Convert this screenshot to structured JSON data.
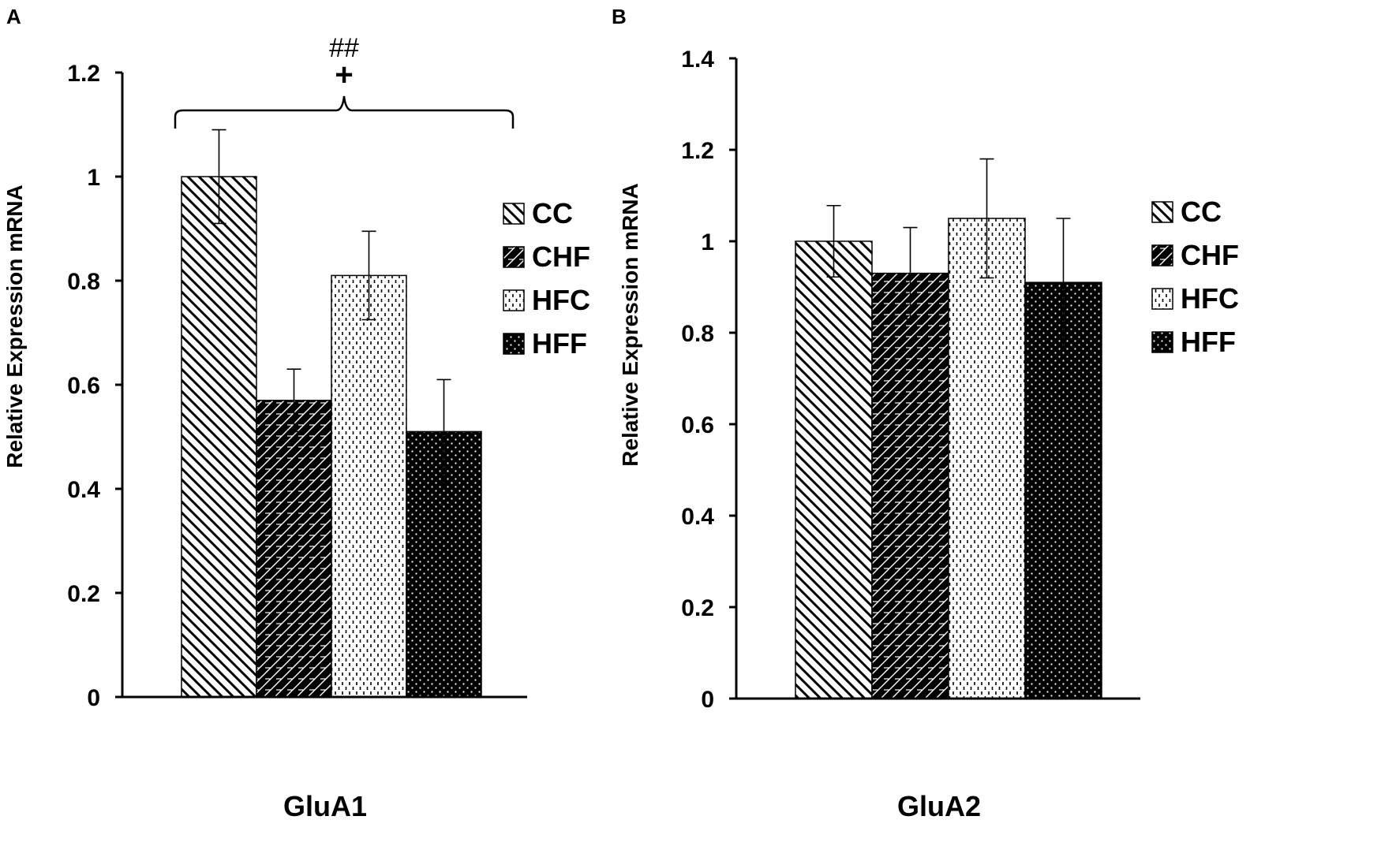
{
  "chart_data": [
    {
      "panel": "A",
      "type": "bar",
      "category": "GluA1",
      "ylabel": "Relative Expression mRNA",
      "ylim": [
        0,
        1.2
      ],
      "yticks": [
        0,
        0.2,
        0.4,
        0.6,
        0.8,
        1,
        1.2
      ],
      "ytick_labels": [
        "0",
        "0.2",
        "0.4",
        "0.6",
        "0.8",
        "1",
        "1.2"
      ],
      "series": [
        {
          "name": "CC",
          "value": 1.0,
          "error": 0.09,
          "pattern": "diag"
        },
        {
          "name": "CHF",
          "value": 0.57,
          "error": 0.06,
          "pattern": "brick"
        },
        {
          "name": "HFC",
          "value": 0.81,
          "error": 0.085,
          "pattern": "dash"
        },
        {
          "name": "HFF",
          "value": 0.51,
          "error": 0.1,
          "pattern": "dots"
        }
      ],
      "annotation": {
        "line1": "##",
        "line2": "+"
      },
      "legend": [
        "CC",
        "CHF",
        "HFC",
        "HFF"
      ]
    },
    {
      "panel": "B",
      "type": "bar",
      "category": "GluA2",
      "ylabel": "Relative Expression mRNA",
      "ylim": [
        0,
        1.4
      ],
      "yticks": [
        0,
        0.2,
        0.4,
        0.6,
        0.8,
        1,
        1.2,
        1.4
      ],
      "ytick_labels": [
        "0",
        "0.2",
        "0.4",
        "0.6",
        "0.8",
        "1",
        "1.2",
        "1.4"
      ],
      "series": [
        {
          "name": "CC",
          "value": 1.0,
          "error": 0.078,
          "pattern": "diag"
        },
        {
          "name": "CHF",
          "value": 0.93,
          "error": 0.1,
          "pattern": "brick"
        },
        {
          "name": "HFC",
          "value": 1.05,
          "error": 0.13,
          "pattern": "dash"
        },
        {
          "name": "HFF",
          "value": 0.91,
          "error": 0.14,
          "pattern": "dots"
        }
      ],
      "legend": [
        "CC",
        "CHF",
        "HFC",
        "HFF"
      ]
    }
  ]
}
